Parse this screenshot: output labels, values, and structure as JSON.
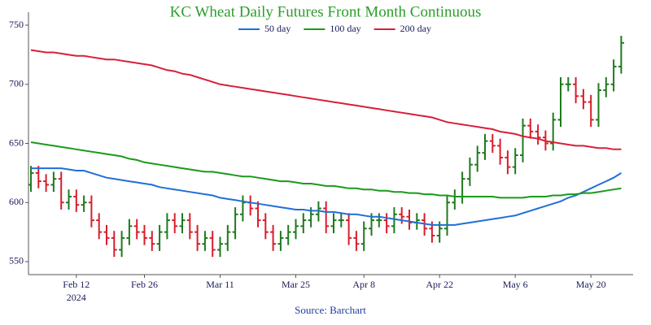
{
  "chart_data": {
    "type": "ohlc",
    "title": "KC Wheat Daily Futures Front Month Continuous",
    "source": "Source: Barchart",
    "year": "2024",
    "categories": [
      null,
      null,
      null,
      null,
      null,
      null,
      "Feb 12",
      null,
      null,
      null,
      null,
      null,
      null,
      null,
      null,
      "Feb 26",
      null,
      null,
      null,
      null,
      null,
      null,
      null,
      null,
      null,
      "Mar 11",
      null,
      null,
      null,
      null,
      null,
      null,
      null,
      null,
      null,
      "Mar 25",
      null,
      null,
      null,
      null,
      null,
      null,
      null,
      null,
      "Apr 8",
      null,
      null,
      null,
      null,
      null,
      null,
      null,
      null,
      null,
      "Apr 22",
      null,
      null,
      null,
      null,
      null,
      null,
      null,
      null,
      null,
      "May 6",
      null,
      null,
      null,
      null,
      null,
      null,
      null,
      null,
      null,
      "May 20",
      null,
      null,
      null,
      null
    ],
    "ohlc": {
      "open": [
        615,
        625,
        618,
        615,
        620,
        600,
        605,
        598,
        600,
        585,
        575,
        570,
        560,
        570,
        580,
        575,
        570,
        565,
        575,
        585,
        580,
        585,
        575,
        565,
        570,
        560,
        565,
        575,
        590,
        600,
        595,
        585,
        575,
        565,
        570,
        575,
        580,
        585,
        590,
        595,
        580,
        585,
        585,
        570,
        565,
        578,
        585,
        585,
        580,
        590,
        588,
        583,
        585,
        578,
        572,
        578,
        600,
        605,
        620,
        632,
        642,
        652,
        648,
        638,
        630,
        640,
        665,
        660,
        655,
        650,
        670,
        700,
        700,
        690,
        685,
        670,
        695,
        700,
        715
      ],
      "high": [
        631,
        631,
        624,
        626,
        626,
        611,
        611,
        606,
        606,
        591,
        581,
        576,
        576,
        586,
        586,
        581,
        576,
        581,
        591,
        591,
        591,
        591,
        581,
        576,
        576,
        571,
        581,
        596,
        606,
        606,
        601,
        591,
        581,
        576,
        581,
        586,
        591,
        596,
        601,
        601,
        591,
        591,
        591,
        576,
        584,
        591,
        591,
        591,
        596,
        596,
        594,
        591,
        591,
        584,
        584,
        606,
        611,
        626,
        638,
        648,
        658,
        658,
        654,
        644,
        646,
        671,
        671,
        666,
        661,
        676,
        706,
        706,
        706,
        696,
        691,
        701,
        706,
        721,
        741
      ],
      "low": [
        609,
        612,
        609,
        609,
        594,
        594,
        592,
        592,
        579,
        569,
        564,
        554,
        554,
        564,
        569,
        564,
        559,
        559,
        569,
        574,
        574,
        569,
        559,
        559,
        554,
        554,
        559,
        569,
        584,
        589,
        579,
        569,
        559,
        559,
        564,
        569,
        574,
        579,
        584,
        574,
        574,
        579,
        564,
        559,
        559,
        572,
        579,
        574,
        574,
        582,
        577,
        577,
        572,
        566,
        566,
        572,
        594,
        599,
        614,
        626,
        636,
        642,
        632,
        624,
        624,
        634,
        654,
        649,
        644,
        644,
        664,
        694,
        684,
        679,
        664,
        664,
        689,
        694,
        709
      ],
      "close": [
        625,
        618,
        615,
        620,
        600,
        605,
        598,
        600,
        585,
        575,
        570,
        560,
        570,
        580,
        575,
        570,
        565,
        575,
        585,
        580,
        585,
        575,
        565,
        570,
        560,
        565,
        575,
        590,
        600,
        595,
        585,
        575,
        565,
        570,
        575,
        580,
        585,
        590,
        595,
        580,
        585,
        585,
        570,
        565,
        578,
        585,
        585,
        580,
        590,
        588,
        583,
        585,
        578,
        572,
        578,
        600,
        605,
        620,
        632,
        642,
        652,
        648,
        638,
        630,
        640,
        665,
        660,
        655,
        650,
        670,
        700,
        700,
        690,
        685,
        670,
        695,
        700,
        715,
        735
      ]
    },
    "up_color": "#1e7a1e",
    "down_color": "#d81e2c",
    "series": [
      {
        "name": "50 day",
        "color": "#1f6fd6",
        "values": [
          629,
          629,
          629,
          629,
          629,
          628,
          627,
          627,
          625,
          623,
          621,
          620,
          619,
          618,
          617,
          616,
          615,
          613,
          612,
          611,
          610,
          609,
          608,
          607,
          606,
          604,
          603,
          602,
          601,
          600,
          599,
          598,
          597,
          596,
          595,
          594,
          594,
          593,
          593,
          592,
          592,
          591,
          590,
          590,
          589,
          588,
          588,
          587,
          586,
          585,
          584,
          583,
          582,
          581,
          581,
          581,
          581,
          582,
          583,
          584,
          585,
          586,
          587,
          588,
          589,
          591,
          593,
          595,
          597,
          599,
          601,
          604,
          606,
          609,
          612,
          615,
          618,
          621,
          625
        ]
      },
      {
        "name": "100 day",
        "color": "#1a9a1a",
        "values": [
          651,
          650,
          649,
          648,
          647,
          646,
          645,
          644,
          643,
          642,
          641,
          640,
          639,
          637,
          636,
          634,
          633,
          632,
          631,
          630,
          629,
          628,
          627,
          626,
          626,
          625,
          624,
          623,
          622,
          622,
          621,
          620,
          619,
          618,
          618,
          617,
          616,
          616,
          615,
          614,
          614,
          613,
          612,
          612,
          611,
          611,
          610,
          610,
          609,
          609,
          608,
          608,
          607,
          607,
          606,
          606,
          605,
          605,
          605,
          605,
          605,
          605,
          604,
          604,
          604,
          604,
          605,
          605,
          605,
          606,
          606,
          607,
          607,
          608,
          608,
          609,
          610,
          611,
          612
        ]
      },
      {
        "name": "200 day",
        "color": "#d6203a",
        "values": [
          729,
          728,
          727,
          727,
          726,
          725,
          724,
          724,
          723,
          722,
          721,
          721,
          720,
          719,
          718,
          717,
          716,
          714,
          712,
          711,
          709,
          708,
          706,
          704,
          702,
          700,
          699,
          698,
          697,
          696,
          695,
          694,
          693,
          692,
          691,
          690,
          689,
          688,
          687,
          686,
          685,
          684,
          683,
          682,
          681,
          680,
          679,
          678,
          677,
          676,
          675,
          674,
          673,
          672,
          670,
          668,
          667,
          666,
          665,
          664,
          663,
          662,
          660,
          659,
          658,
          656,
          655,
          654,
          652,
          651,
          650,
          649,
          648,
          648,
          647,
          646,
          646,
          645,
          645
        ]
      }
    ],
    "ylim": [
      539,
      761
    ],
    "yticks": [
      550,
      600,
      650,
      700,
      750
    ]
  }
}
